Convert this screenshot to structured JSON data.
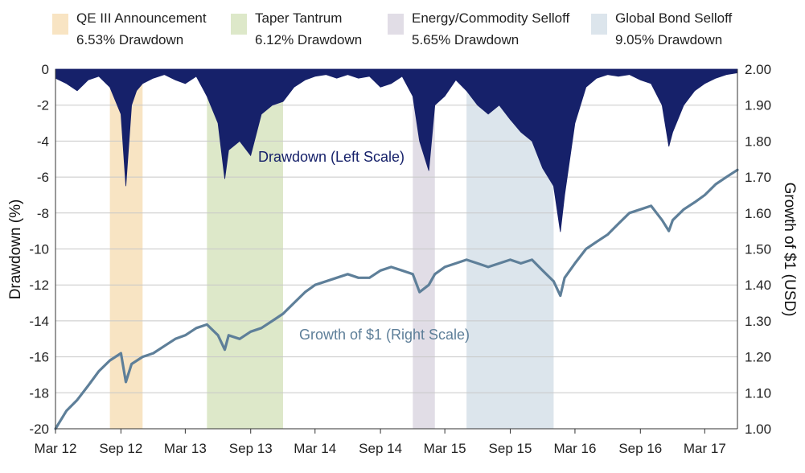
{
  "chart_data": {
    "type": "line",
    "title": "",
    "ylabel_left": "Drawdown (%)",
    "ylabel_right": "Growth of $1 (USD)",
    "ylim_left": [
      -20,
      0
    ],
    "ylim_right": [
      1.0,
      2.0
    ],
    "y_ticks_left": [
      "0",
      "-2",
      "-4",
      "-6",
      "-8",
      "-10",
      "-12",
      "-14",
      "-16",
      "-18",
      "-20"
    ],
    "y_ticks_right": [
      "2.00",
      "1.90",
      "1.80",
      "1.70",
      "1.60",
      "1.50",
      "1.40",
      "1.30",
      "1.20",
      "1.10",
      "1.00"
    ],
    "x_ticks": [
      "Mar 12",
      "Sep 12",
      "Mar 13",
      "Sep 13",
      "Mar 14",
      "Sep 14",
      "Mar 15",
      "Sep 15",
      "Mar 16",
      "Sep 16",
      "Mar 17"
    ],
    "x_range": [
      "2012-03",
      "2017-06"
    ],
    "grid": true,
    "legend_position": "top",
    "colors": {
      "drawdown": "#16216a",
      "growth": "#5e7f99",
      "grid": "#c8c8c8"
    },
    "shaded_periods": [
      {
        "line1": "QE III Announcement",
        "line2": "6.53% Drawdown",
        "start": "2012-08",
        "end": "2012-11",
        "color": "#f8e4c3"
      },
      {
        "line1": "Taper Tantrum",
        "line2": "6.12% Drawdown",
        "start": "2013-05",
        "end": "2013-12",
        "color": "#dde8c9"
      },
      {
        "line1": "Energy/Commodity Selloff",
        "line2": "5.65% Drawdown",
        "start": "2014-12",
        "end": "2015-02",
        "color": "#e1dde6"
      },
      {
        "line1": "Global Bond Selloff",
        "line2": "9.05% Drawdown",
        "start": "2015-05",
        "end": "2016-01",
        "color": "#dce5ec"
      }
    ],
    "series": [
      {
        "name": "Drawdown (Left Scale)",
        "axis": "left",
        "style": "area",
        "x": [
          "2012-03-01",
          "2012-04-01",
          "2012-05-01",
          "2012-06-01",
          "2012-07-01",
          "2012-08-01",
          "2012-09-01",
          "2012-09-15",
          "2012-10-01",
          "2012-10-15",
          "2012-11-01",
          "2012-12-01",
          "2013-01-01",
          "2013-02-01",
          "2013-03-01",
          "2013-04-01",
          "2013-05-01",
          "2013-06-01",
          "2013-06-20",
          "2013-07-01",
          "2013-08-01",
          "2013-09-01",
          "2013-10-01",
          "2013-11-01",
          "2013-12-01",
          "2014-01-01",
          "2014-02-01",
          "2014-03-01",
          "2014-04-01",
          "2014-05-01",
          "2014-06-01",
          "2014-07-01",
          "2014-08-01",
          "2014-09-01",
          "2014-10-01",
          "2014-11-01",
          "2014-12-01",
          "2014-12-20",
          "2015-01-15",
          "2015-02-01",
          "2015-03-01",
          "2015-04-01",
          "2015-05-01",
          "2015-06-01",
          "2015-07-01",
          "2015-08-01",
          "2015-09-01",
          "2015-10-01",
          "2015-11-01",
          "2015-12-01",
          "2016-01-01",
          "2016-01-20",
          "2016-02-01",
          "2016-03-01",
          "2016-04-01",
          "2016-05-01",
          "2016-06-01",
          "2016-07-01",
          "2016-08-01",
          "2016-09-01",
          "2016-10-01",
          "2016-11-01",
          "2016-11-20",
          "2016-12-01",
          "2017-01-01",
          "2017-02-01",
          "2017-03-01",
          "2017-04-01",
          "2017-05-01",
          "2017-06-01"
        ],
        "values": [
          -0.5,
          -0.8,
          -1.2,
          -0.6,
          -0.4,
          -1.0,
          -2.5,
          -6.5,
          -2.0,
          -1.2,
          -0.8,
          -0.5,
          -0.3,
          -0.6,
          -0.8,
          -0.4,
          -1.5,
          -3.0,
          -6.1,
          -4.5,
          -4.0,
          -4.8,
          -2.5,
          -2.0,
          -1.8,
          -1.0,
          -0.6,
          -0.4,
          -0.3,
          -0.5,
          -0.3,
          -0.5,
          -0.4,
          -1.0,
          -0.8,
          -0.4,
          -1.5,
          -4.0,
          -5.65,
          -2.0,
          -1.5,
          -0.6,
          -1.2,
          -2.0,
          -2.5,
          -2.0,
          -2.8,
          -3.5,
          -4.0,
          -5.5,
          -6.5,
          -9.05,
          -7.0,
          -3.0,
          -1.0,
          -0.5,
          -0.3,
          -0.4,
          -0.3,
          -0.6,
          -0.8,
          -2.0,
          -4.3,
          -3.5,
          -2.0,
          -1.2,
          -0.8,
          -0.5,
          -0.3,
          -0.2
        ]
      },
      {
        "name": "Growth of $1 (Right Scale)",
        "axis": "right",
        "style": "line",
        "x": [
          "2012-03-01",
          "2012-04-01",
          "2012-05-01",
          "2012-06-01",
          "2012-07-01",
          "2012-08-01",
          "2012-09-01",
          "2012-09-15",
          "2012-10-01",
          "2012-11-01",
          "2012-12-01",
          "2013-01-01",
          "2013-02-01",
          "2013-03-01",
          "2013-04-01",
          "2013-05-01",
          "2013-06-01",
          "2013-06-20",
          "2013-07-01",
          "2013-08-01",
          "2013-09-01",
          "2013-10-01",
          "2013-11-01",
          "2013-12-01",
          "2014-01-01",
          "2014-02-01",
          "2014-03-01",
          "2014-04-01",
          "2014-05-01",
          "2014-06-01",
          "2014-07-01",
          "2014-08-01",
          "2014-09-01",
          "2014-10-01",
          "2014-11-01",
          "2014-12-01",
          "2014-12-20",
          "2015-01-15",
          "2015-02-01",
          "2015-03-01",
          "2015-04-01",
          "2015-05-01",
          "2015-06-01",
          "2015-07-01",
          "2015-08-01",
          "2015-09-01",
          "2015-10-01",
          "2015-11-01",
          "2015-12-01",
          "2016-01-01",
          "2016-01-20",
          "2016-02-01",
          "2016-03-01",
          "2016-04-01",
          "2016-05-01",
          "2016-06-01",
          "2016-07-01",
          "2016-08-01",
          "2016-09-01",
          "2016-10-01",
          "2016-11-01",
          "2016-11-20",
          "2016-12-01",
          "2017-01-01",
          "2017-02-01",
          "2017-03-01",
          "2017-04-01",
          "2017-05-01",
          "2017-06-01"
        ],
        "values": [
          1.0,
          1.05,
          1.08,
          1.12,
          1.16,
          1.19,
          1.21,
          1.13,
          1.18,
          1.2,
          1.21,
          1.23,
          1.25,
          1.26,
          1.28,
          1.29,
          1.26,
          1.22,
          1.26,
          1.25,
          1.27,
          1.28,
          1.3,
          1.32,
          1.35,
          1.38,
          1.4,
          1.41,
          1.42,
          1.43,
          1.42,
          1.42,
          1.44,
          1.45,
          1.44,
          1.43,
          1.38,
          1.4,
          1.43,
          1.45,
          1.46,
          1.47,
          1.46,
          1.45,
          1.46,
          1.47,
          1.46,
          1.47,
          1.44,
          1.41,
          1.37,
          1.42,
          1.46,
          1.5,
          1.52,
          1.54,
          1.57,
          1.6,
          1.61,
          1.62,
          1.58,
          1.55,
          1.58,
          1.61,
          1.63,
          1.65,
          1.68,
          1.7,
          1.72
        ]
      }
    ],
    "annotations": [
      {
        "text": "Drawdown (Left Scale)",
        "series": "drawdown"
      },
      {
        "text": "Growth of $1 (Right Scale)",
        "series": "growth"
      }
    ]
  }
}
